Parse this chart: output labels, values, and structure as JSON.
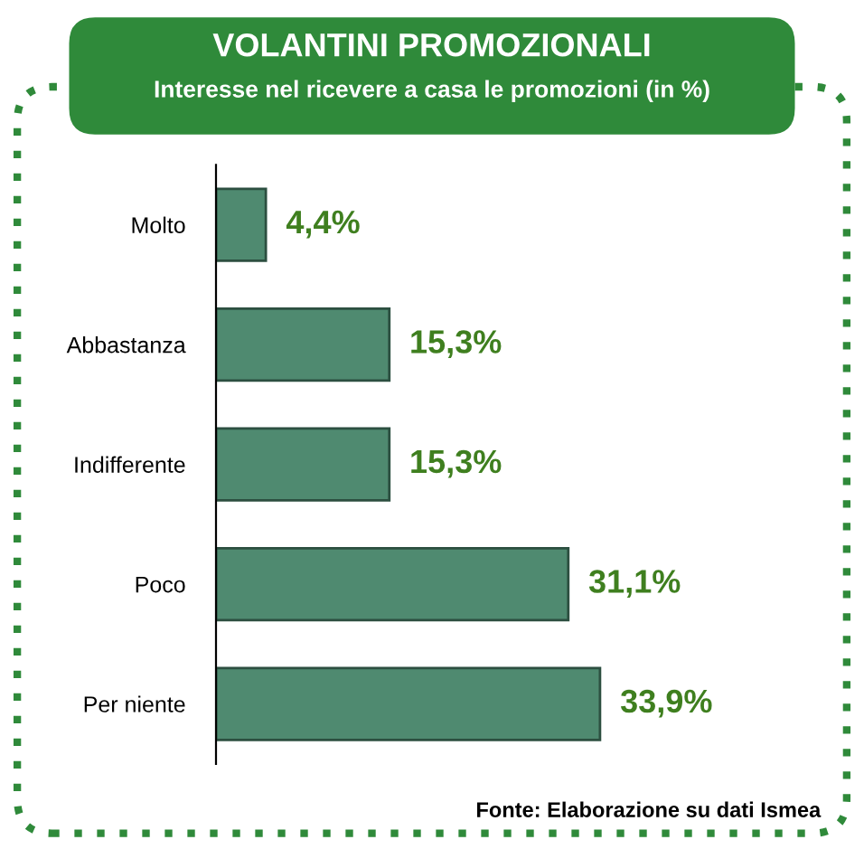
{
  "chart_data": {
    "type": "bar",
    "orientation": "horizontal",
    "title": "VOLANTINI PROMOZIONALI",
    "subtitle": "Interesse nel ricevere a casa le promozioni (in %)",
    "categories": [
      "Molto",
      "Abbastanza",
      "Indifferente",
      "Poco",
      "Per niente"
    ],
    "values": [
      4.4,
      15.3,
      15.3,
      31.1,
      33.9
    ],
    "value_labels": [
      "4,4%",
      "15,3%",
      "15,3%",
      "31,1%",
      "33,9%"
    ],
    "color": "#4f8a70",
    "annotations": [
      "Fonte: Elaborazione su dati Ismea"
    ]
  }
}
